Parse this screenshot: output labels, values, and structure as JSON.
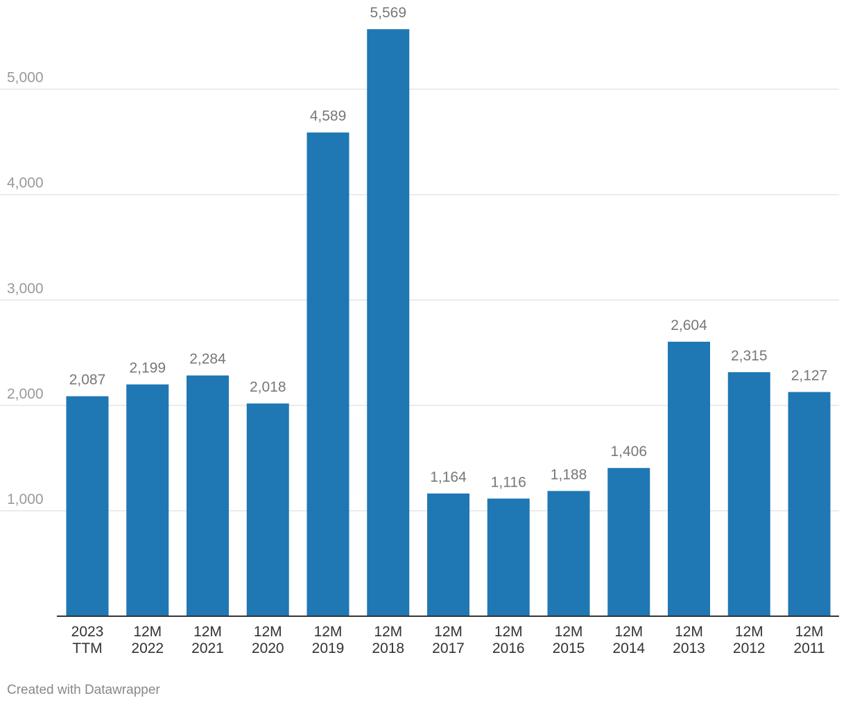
{
  "chart_data": {
    "type": "bar",
    "categories": [
      [
        "2023",
        "TTM"
      ],
      [
        "12M",
        "2022"
      ],
      [
        "12M",
        "2021"
      ],
      [
        "12M",
        "2020"
      ],
      [
        "12M",
        "2019"
      ],
      [
        "12M",
        "2018"
      ],
      [
        "12M",
        "2017"
      ],
      [
        "12M",
        "2016"
      ],
      [
        "12M",
        "2015"
      ],
      [
        "12M",
        "2014"
      ],
      [
        "12M",
        "2013"
      ],
      [
        "12M",
        "2012"
      ],
      [
        "12M",
        "2011"
      ]
    ],
    "values": [
      2087,
      2199,
      2284,
      2018,
      4589,
      5569,
      1164,
      1116,
      1188,
      1406,
      2604,
      2315,
      2127
    ],
    "value_labels": [
      "2,087",
      "2,199",
      "2,284",
      "2,018",
      "4,589",
      "5,569",
      "1,164",
      "1,116",
      "1,188",
      "1,406",
      "2,604",
      "2,315",
      "2,127"
    ],
    "ylim": [
      0,
      5800
    ],
    "yticks": [
      1000,
      2000,
      3000,
      4000,
      5000
    ],
    "ytick_labels": [
      "1,000",
      "2,000",
      "3,000",
      "4,000",
      "5,000"
    ],
    "grid": true,
    "bar_color": "#1f77b4"
  },
  "credit": "Created with Datawrapper"
}
